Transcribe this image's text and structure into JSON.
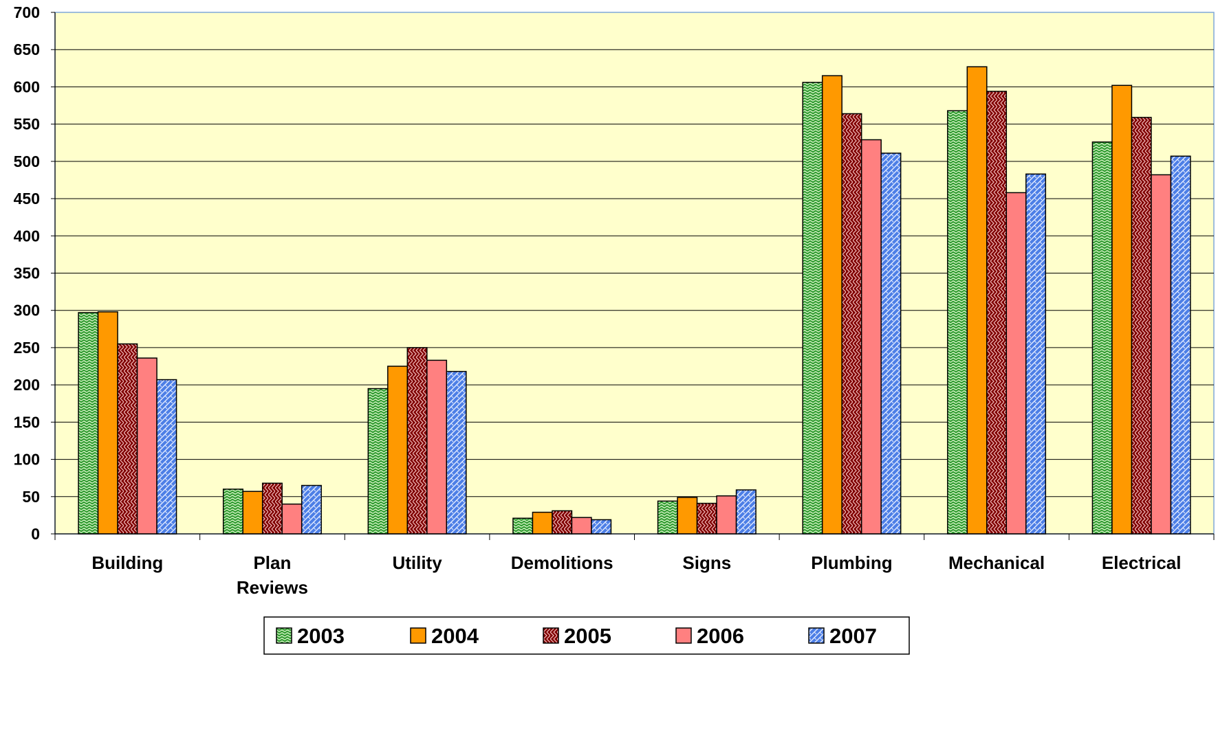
{
  "chart_data": {
    "type": "bar",
    "title": "",
    "xlabel": "",
    "ylabel": "",
    "ylim": [
      0,
      700
    ],
    "yticks": [
      0,
      50,
      100,
      150,
      200,
      250,
      300,
      350,
      400,
      450,
      500,
      550,
      600,
      650,
      700
    ],
    "grid": true,
    "legend_position": "bottom",
    "plot_background": "#ffffcc",
    "categories": [
      [
        "Building"
      ],
      [
        "Plan",
        "Reviews"
      ],
      [
        "Utility"
      ],
      [
        "Demolitions"
      ],
      [
        "Signs"
      ],
      [
        "Plumbing"
      ],
      [
        "Mechanical"
      ],
      [
        "Electrical"
      ]
    ],
    "series": [
      {
        "name": "2003",
        "color": "#2f9a2f",
        "pattern": "green-wave",
        "values": [
          297,
          60,
          195,
          21,
          44,
          606,
          568,
          526
        ]
      },
      {
        "name": "2004",
        "color": "#ff9900",
        "pattern": "solid",
        "values": [
          298,
          57,
          225,
          29,
          49,
          615,
          627,
          602
        ]
      },
      {
        "name": "2005",
        "color": "#800000",
        "pattern": "maroon-zigzag",
        "values": [
          255,
          68,
          250,
          31,
          41,
          564,
          594,
          559
        ]
      },
      {
        "name": "2006",
        "color": "#ff8080",
        "pattern": "solid",
        "values": [
          236,
          40,
          233,
          22,
          51,
          529,
          458,
          482
        ]
      },
      {
        "name": "2007",
        "color": "#4d7fe6",
        "pattern": "blue-hatch",
        "values": [
          207,
          65,
          218,
          19,
          59,
          511,
          483,
          507
        ]
      }
    ]
  }
}
